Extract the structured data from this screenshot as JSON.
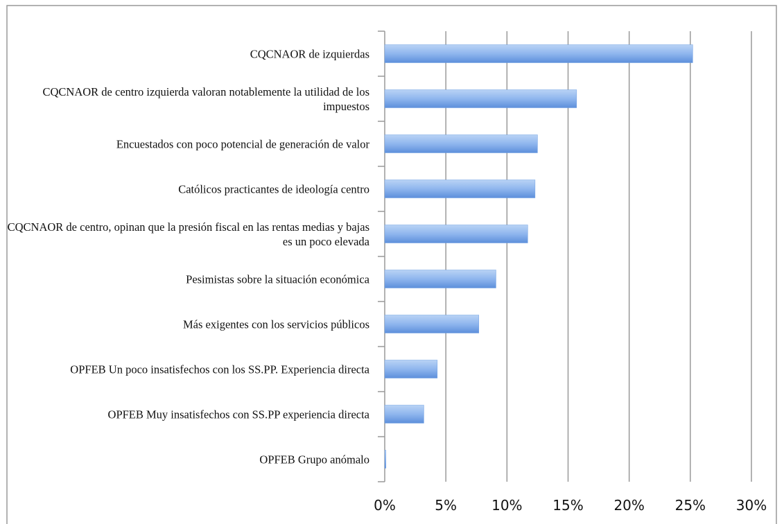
{
  "chart_data": {
    "type": "bar",
    "orientation": "horizontal",
    "categories": [
      "CQCNAOR de izquierdas",
      "CQCNAOR de centro izquierda valoran notablemente la utilidad de los impuestos",
      "Encuestados con poco potencial de generación de valor",
      "Católicos practicantes de ideología centro",
      "CQCNAOR de centro, opinan que la presión fiscal en las rentas medias y bajas es un poco elevada",
      "Pesimistas sobre la situación económica",
      "Más exigentes con los servicios públicos",
      "OPFEB Un poco insatisfechos con los SS.PP. Experiencia directa",
      "OPFEB Muy insatisfechos con SS.PP experiencia directa",
      "OPFEB Grupo anómalo"
    ],
    "values": [
      25.2,
      15.7,
      12.5,
      12.3,
      11.7,
      9.1,
      7.7,
      4.3,
      3.2,
      0.1
    ],
    "color": "#6f9fe3",
    "xlim": [
      0,
      30
    ],
    "xticks": [
      {
        "value": 0,
        "label": "0%"
      },
      {
        "value": 5,
        "label": "5%"
      },
      {
        "value": 10,
        "label": "10%"
      },
      {
        "value": 15,
        "label": "15%"
      },
      {
        "value": 20,
        "label": "20%"
      },
      {
        "value": 25,
        "label": "25%"
      },
      {
        "value": 30,
        "label": "30%"
      }
    ],
    "grid": true
  }
}
